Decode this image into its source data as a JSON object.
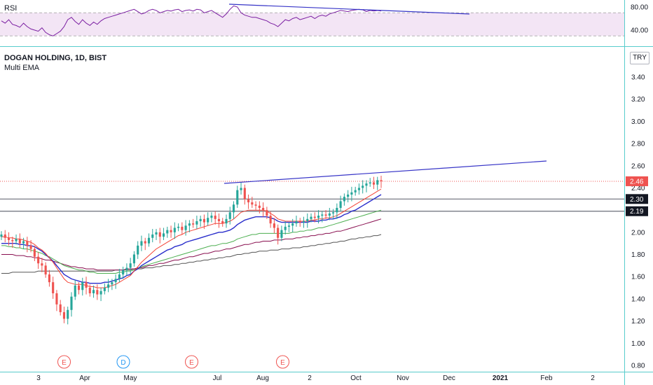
{
  "symbol_title": "DOGAN HOLDING, 1D, BIST",
  "indicator_title": "Multi EMA",
  "rsi_title": "RSI",
  "currency": "TRY",
  "colors": {
    "up": "#26a69a",
    "down": "#ef5350",
    "ema1": "#f44336",
    "ema2": "#2a2ecb",
    "ema3": "#4caf50",
    "ema4": "#880e4f",
    "ema5": "#555555",
    "trend": "#3634c7",
    "rsi": "#7b1fa2",
    "rsi_band": "#f3e5f5"
  },
  "chart_data": {
    "type": "candlestick",
    "title": "DOGAN HOLDING, 1D, BIST",
    "y_ticks": [
      "3.40",
      "3.20",
      "3.00",
      "2.80",
      "2.60",
      "2.40",
      "2.20",
      "2.00",
      "1.80",
      "1.60",
      "1.40",
      "1.20",
      "1.00",
      "0.80"
    ],
    "ylim": [
      0.78,
      3.6
    ],
    "x_ticks": [
      "3",
      "Apr",
      "May",
      "Jul",
      "Aug",
      "2",
      "Oct",
      "Nov",
      "Dec",
      "2021",
      "Feb",
      "2"
    ],
    "price_tags": [
      {
        "value": "2.46",
        "level": 2.46,
        "color": "#ef5350"
      },
      {
        "value": "2.30",
        "level": 2.3,
        "color": "#131722"
      },
      {
        "value": "2.19",
        "level": 2.19,
        "color": "#131722"
      }
    ],
    "event_markers": [
      {
        "label": "E",
        "time": 0.07
      },
      {
        "label": "D",
        "time": 0.2
      },
      {
        "label": "E",
        "time": 0.35
      },
      {
        "label": "E",
        "time": 0.55
      }
    ],
    "close": [
      1.98,
      1.95,
      1.93,
      1.92,
      1.94,
      1.9,
      1.92,
      1.88,
      1.85,
      1.78,
      1.72,
      1.7,
      1.62,
      1.55,
      1.45,
      1.35,
      1.28,
      1.22,
      1.3,
      1.42,
      1.52,
      1.48,
      1.55,
      1.5,
      1.45,
      1.48,
      1.44,
      1.47,
      1.5,
      1.53,
      1.55,
      1.58,
      1.62,
      1.66,
      1.68,
      1.72,
      1.8,
      1.88,
      1.92,
      1.9,
      1.95,
      1.98,
      2.0,
      1.96,
      1.99,
      2.02,
      2.0,
      2.04,
      2.05,
      2.02,
      2.06,
      2.08,
      2.07,
      2.1,
      2.12,
      2.09,
      2.13,
      2.15,
      2.12,
      2.1,
      2.08,
      2.12,
      2.18,
      2.25,
      2.38,
      2.4,
      2.3,
      2.27,
      2.25,
      2.24,
      2.22,
      2.2,
      2.15,
      2.08,
      2.04,
      1.95,
      2.02,
      2.05,
      2.06,
      2.08,
      2.1,
      2.09,
      2.1,
      2.12,
      2.14,
      2.13,
      2.15,
      2.16,
      2.15,
      2.17,
      2.18,
      2.22,
      2.28,
      2.32,
      2.34,
      2.36,
      2.38,
      2.4,
      2.42,
      2.44,
      2.45,
      2.43,
      2.47,
      2.46
    ],
    "ema_fast": [
      1.96,
      1.96,
      1.95,
      1.95,
      1.94,
      1.94,
      1.93,
      1.92,
      1.91,
      1.89,
      1.86,
      1.84,
      1.81,
      1.77,
      1.73,
      1.68,
      1.63,
      1.58,
      1.55,
      1.54,
      1.53,
      1.53,
      1.53,
      1.52,
      1.51,
      1.51,
      1.5,
      1.5,
      1.5,
      1.51,
      1.52,
      1.53,
      1.55,
      1.57,
      1.59,
      1.61,
      1.65,
      1.69,
      1.73,
      1.76,
      1.79,
      1.82,
      1.85,
      1.87,
      1.89,
      1.91,
      1.93,
      1.95,
      1.97,
      1.98,
      2.0,
      2.01,
      2.02,
      2.03,
      2.04,
      2.05,
      2.06,
      2.07,
      2.08,
      2.08,
      2.08,
      2.09,
      2.1,
      2.12,
      2.15,
      2.18,
      2.19,
      2.2,
      2.2,
      2.2,
      2.2,
      2.2,
      2.19,
      2.17,
      2.15,
      2.12,
      2.11,
      2.1,
      2.1,
      2.1,
      2.1,
      2.1,
      2.1,
      2.1,
      2.11,
      2.11,
      2.12,
      2.12,
      2.13,
      2.13,
      2.14,
      2.15,
      2.17,
      2.19,
      2.21,
      2.23,
      2.25,
      2.27,
      2.29,
      2.31,
      2.33,
      2.35,
      2.37,
      2.39
    ],
    "ema_mid": [
      1.9,
      1.9,
      1.9,
      1.9,
      1.9,
      1.89,
      1.89,
      1.88,
      1.88,
      1.87,
      1.85,
      1.83,
      1.8,
      1.77,
      1.74,
      1.7,
      1.66,
      1.62,
      1.6,
      1.58,
      1.57,
      1.56,
      1.55,
      1.55,
      1.54,
      1.54,
      1.54,
      1.54,
      1.55,
      1.55,
      1.56,
      1.57,
      1.58,
      1.59,
      1.61,
      1.62,
      1.65,
      1.67,
      1.7,
      1.72,
      1.74,
      1.76,
      1.78,
      1.8,
      1.82,
      1.84,
      1.85,
      1.87,
      1.88,
      1.89,
      1.91,
      1.92,
      1.93,
      1.94,
      1.95,
      1.96,
      1.97,
      1.98,
      1.99,
      2.0,
      2.0,
      2.01,
      2.02,
      2.04,
      2.07,
      2.09,
      2.11,
      2.12,
      2.13,
      2.14,
      2.14,
      2.14,
      2.14,
      2.13,
      2.12,
      2.1,
      2.09,
      2.09,
      2.09,
      2.09,
      2.09,
      2.09,
      2.09,
      2.09,
      2.1,
      2.1,
      2.1,
      2.11,
      2.11,
      2.12,
      2.12,
      2.13,
      2.14,
      2.16,
      2.17,
      2.19,
      2.2,
      2.22,
      2.24,
      2.26,
      2.28,
      2.3,
      2.32,
      2.34
    ],
    "ema_50": [
      1.88,
      1.88,
      1.87,
      1.87,
      1.86,
      1.86,
      1.85,
      1.85,
      1.84,
      1.83,
      1.82,
      1.81,
      1.79,
      1.78,
      1.76,
      1.74,
      1.72,
      1.7,
      1.69,
      1.68,
      1.67,
      1.66,
      1.66,
      1.65,
      1.64,
      1.64,
      1.63,
      1.63,
      1.63,
      1.63,
      1.63,
      1.63,
      1.64,
      1.64,
      1.65,
      1.65,
      1.66,
      1.67,
      1.69,
      1.7,
      1.71,
      1.72,
      1.73,
      1.74,
      1.75,
      1.76,
      1.77,
      1.78,
      1.79,
      1.8,
      1.81,
      1.82,
      1.83,
      1.84,
      1.85,
      1.86,
      1.87,
      1.88,
      1.88,
      1.89,
      1.9,
      1.9,
      1.91,
      1.92,
      1.94,
      1.95,
      1.96,
      1.97,
      1.98,
      1.98,
      1.99,
      1.99,
      1.99,
      1.99,
      1.99,
      1.99,
      1.99,
      1.99,
      1.99,
      2.0,
      2.0,
      2.01,
      2.01,
      2.02,
      2.02,
      2.03,
      2.04,
      2.04,
      2.05,
      2.06,
      2.07,
      2.08,
      2.09,
      2.1,
      2.11,
      2.12,
      2.13,
      2.14,
      2.15,
      2.16,
      2.17,
      2.18,
      2.19,
      2.2
    ],
    "ema_100": [
      1.8,
      1.8,
      1.8,
      1.8,
      1.79,
      1.79,
      1.79,
      1.78,
      1.78,
      1.77,
      1.77,
      1.76,
      1.75,
      1.75,
      1.74,
      1.73,
      1.72,
      1.71,
      1.7,
      1.69,
      1.69,
      1.68,
      1.68,
      1.67,
      1.67,
      1.67,
      1.66,
      1.66,
      1.66,
      1.66,
      1.66,
      1.66,
      1.66,
      1.66,
      1.67,
      1.67,
      1.67,
      1.68,
      1.68,
      1.69,
      1.7,
      1.7,
      1.71,
      1.72,
      1.72,
      1.73,
      1.74,
      1.75,
      1.75,
      1.76,
      1.77,
      1.78,
      1.78,
      1.79,
      1.8,
      1.81,
      1.81,
      1.82,
      1.83,
      1.83,
      1.84,
      1.85,
      1.85,
      1.86,
      1.87,
      1.88,
      1.89,
      1.89,
      1.9,
      1.91,
      1.91,
      1.92,
      1.92,
      1.92,
      1.93,
      1.93,
      1.93,
      1.94,
      1.94,
      1.94,
      1.95,
      1.95,
      1.96,
      1.96,
      1.97,
      1.97,
      1.98,
      1.98,
      1.99,
      1.99,
      2.0,
      2.01,
      2.01,
      2.02,
      2.03,
      2.04,
      2.05,
      2.06,
      2.07,
      2.08,
      2.09,
      2.1,
      2.11,
      2.12
    ],
    "ema_200": [
      1.63,
      1.63,
      1.63,
      1.64,
      1.64,
      1.64,
      1.64,
      1.64,
      1.64,
      1.64,
      1.65,
      1.65,
      1.65,
      1.65,
      1.65,
      1.65,
      1.65,
      1.65,
      1.65,
      1.65,
      1.65,
      1.65,
      1.65,
      1.65,
      1.65,
      1.65,
      1.65,
      1.65,
      1.65,
      1.65,
      1.65,
      1.66,
      1.66,
      1.66,
      1.66,
      1.66,
      1.67,
      1.67,
      1.67,
      1.68,
      1.68,
      1.68,
      1.69,
      1.69,
      1.7,
      1.7,
      1.7,
      1.71,
      1.71,
      1.72,
      1.72,
      1.73,
      1.73,
      1.74,
      1.74,
      1.75,
      1.75,
      1.76,
      1.76,
      1.77,
      1.77,
      1.78,
      1.78,
      1.79,
      1.8,
      1.8,
      1.81,
      1.81,
      1.82,
      1.82,
      1.83,
      1.83,
      1.83,
      1.84,
      1.84,
      1.84,
      1.85,
      1.85,
      1.85,
      1.86,
      1.86,
      1.86,
      1.87,
      1.87,
      1.88,
      1.88,
      1.89,
      1.89,
      1.9,
      1.9,
      1.91,
      1.91,
      1.92,
      1.92,
      1.93,
      1.94,
      1.94,
      1.95,
      1.95,
      1.96,
      1.96,
      1.97,
      1.97,
      1.98
    ],
    "rsi": {
      "y_ticks": [
        "80.00",
        "40.00"
      ],
      "ylim": [
        25,
        88
      ],
      "values": [
        56,
        52,
        58,
        50,
        48,
        45,
        52,
        46,
        42,
        40,
        38,
        44,
        36,
        32,
        30,
        34,
        38,
        46,
        58,
        62,
        55,
        50,
        58,
        52,
        48,
        54,
        50,
        56,
        60,
        62,
        64,
        66,
        68,
        70,
        72,
        74,
        76,
        72,
        68,
        70,
        74,
        76,
        74,
        70,
        72,
        74,
        73,
        75,
        76,
        72,
        74,
        75,
        73,
        76,
        75,
        70,
        72,
        74,
        70,
        66,
        62,
        68,
        76,
        82,
        80,
        70,
        66,
        64,
        62,
        62,
        60,
        58,
        56,
        52,
        50,
        46,
        52,
        58,
        56,
        60,
        62,
        58,
        60,
        62,
        64,
        60,
        64,
        66,
        64,
        68,
        70,
        72,
        74,
        73,
        72,
        74,
        75,
        76,
        75,
        72,
        74,
        73,
        74,
        73
      ]
    }
  }
}
